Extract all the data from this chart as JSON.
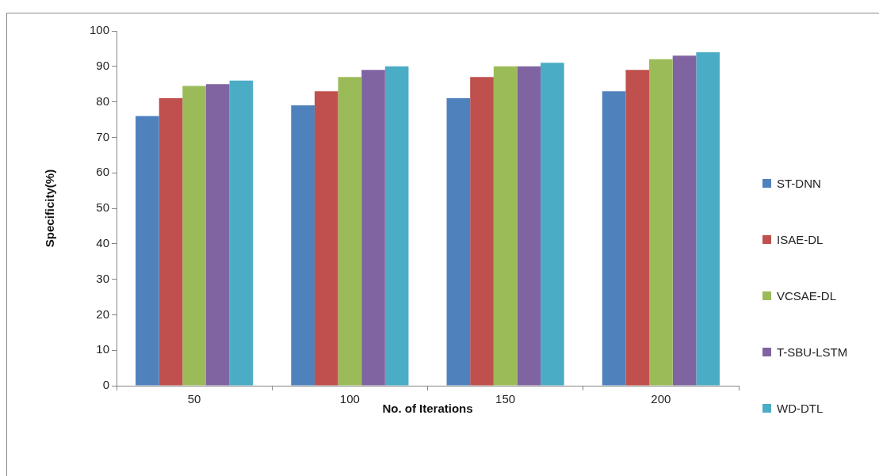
{
  "chart_data": {
    "type": "bar",
    "xlabel": "No. of Iterations",
    "ylabel": "Specificity(%)",
    "categories": [
      "50",
      "100",
      "150",
      "200"
    ],
    "series": [
      {
        "name": "ST-DNN",
        "color": "#4f81bd",
        "values": [
          76,
          79,
          81,
          83
        ]
      },
      {
        "name": "ISAE-DL",
        "color": "#c0504d",
        "values": [
          81,
          83,
          87,
          89
        ]
      },
      {
        "name": "VCSAE-DL",
        "color": "#9bbb59",
        "values": [
          84.5,
          87,
          90,
          92
        ]
      },
      {
        "name": "T-SBU-LSTM",
        "color": "#8064a2",
        "values": [
          85,
          89,
          90,
          93
        ]
      },
      {
        "name": "WD-DTL",
        "color": "#4bacc6",
        "values": [
          86,
          90,
          91,
          94
        ]
      }
    ],
    "ylim": [
      0,
      100
    ],
    "yticks": [
      0,
      10,
      20,
      30,
      40,
      50,
      60,
      70,
      80,
      90,
      100
    ],
    "grid": false,
    "legend": "right"
  }
}
